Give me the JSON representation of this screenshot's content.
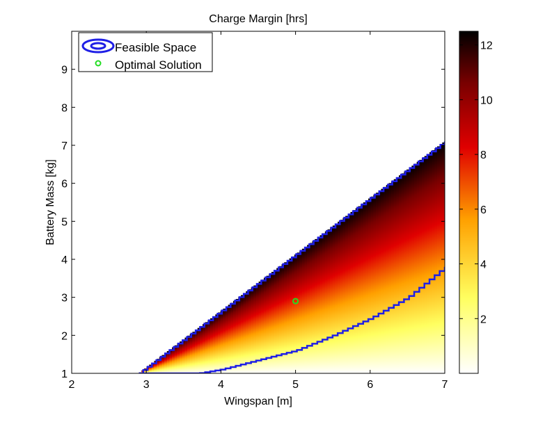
{
  "chart_data": {
    "type": "heatmap",
    "title": "Charge Margin [hrs]",
    "xlabel": "Wingspan [m]",
    "ylabel": "Battery Mass [kg]",
    "xlim": [
      2,
      7
    ],
    "ylim": [
      1,
      10
    ],
    "xticks": [
      "2",
      "3",
      "4",
      "5",
      "6",
      "7"
    ],
    "yticks": [
      "1",
      "2",
      "3",
      "4",
      "5",
      "6",
      "7",
      "8",
      "9"
    ],
    "colorbar": {
      "range": [
        0,
        12.5
      ],
      "ticks": [
        "2",
        "4",
        "6",
        "8",
        "10",
        "12"
      ],
      "colormap": "hot-reversed"
    },
    "series": [
      {
        "name": "Feasible Space",
        "type": "contour",
        "color": "#1f1fe6",
        "upper_boundary": {
          "x": [
            2.9,
            7.0
          ],
          "y": [
            1.0,
            7.1
          ]
        },
        "lower_boundary": {
          "x": [
            2.9,
            3.7,
            4.0,
            4.5,
            5.0,
            5.5,
            6.0,
            6.5,
            7.0
          ],
          "y": [
            1.0,
            1.0,
            1.1,
            1.35,
            1.6,
            2.0,
            2.45,
            3.0,
            3.8
          ]
        }
      },
      {
        "name": "Optimal Solution",
        "type": "scatter",
        "color": "#22dd22",
        "x": [
          5.0
        ],
        "y": [
          2.9
        ]
      }
    ],
    "legend": {
      "position": "top-left"
    },
    "grid": false
  }
}
